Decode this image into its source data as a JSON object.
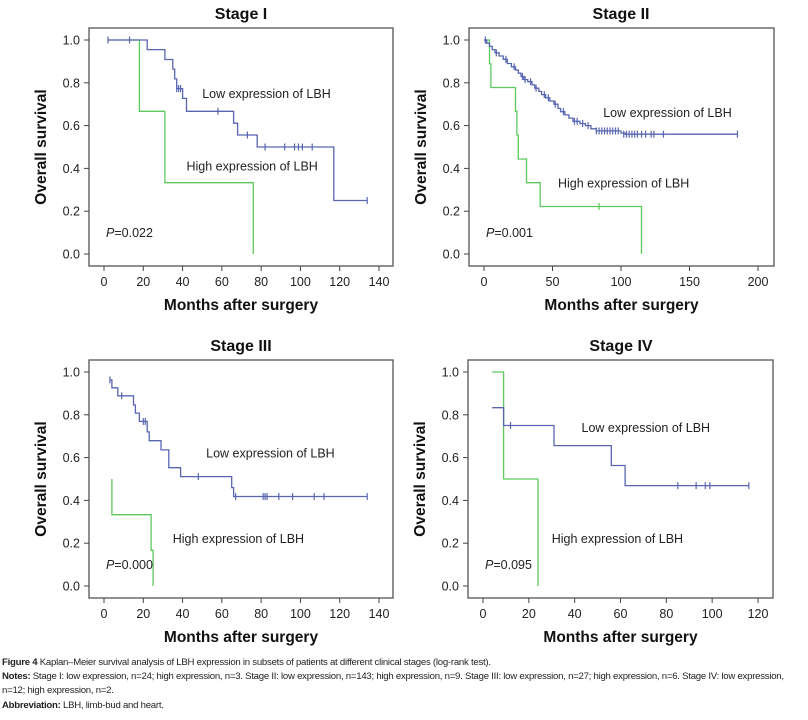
{
  "chart_data": [
    {
      "type": "line",
      "subtype": "kaplan-meier",
      "title": "Stage I",
      "xlabel": "Months after surgery",
      "ylabel": "Overall survival",
      "xlim": [
        0,
        140
      ],
      "ylim": [
        0,
        1
      ],
      "xticks": [
        0,
        20,
        40,
        60,
        80,
        100,
        120,
        140
      ],
      "yticks": [
        "0.0",
        "0.2",
        "0.4",
        "0.6",
        "0.8",
        "1.0"
      ],
      "pvalue_label": "P",
      "pvalue_text": "=0.022",
      "series": [
        {
          "name": "Low expression of LBH",
          "color": "#5866b2",
          "steps": [
            [
              2,
              1.0
            ],
            [
              22,
              0.955
            ],
            [
              31,
              0.909
            ],
            [
              35,
              0.864
            ],
            [
              36,
              0.818
            ],
            [
              37,
              0.773
            ],
            [
              40,
              0.727
            ],
            [
              42,
              0.667
            ],
            [
              66,
              0.611
            ],
            [
              68,
              0.556
            ],
            [
              78,
              0.5
            ],
            [
              117,
              0.25
            ],
            [
              134,
              0.25
            ]
          ],
          "censored": [
            [
              2,
              1.0
            ],
            [
              13,
              1.0
            ],
            [
              37,
              0.773
            ],
            [
              38,
              0.773
            ],
            [
              39,
              0.773
            ],
            [
              58,
              0.667
            ],
            [
              73,
              0.556
            ],
            [
              82,
              0.5
            ],
            [
              92,
              0.5
            ],
            [
              97,
              0.5
            ],
            [
              99,
              0.5
            ],
            [
              101,
              0.5
            ],
            [
              106,
              0.5
            ],
            [
              134,
              0.25
            ]
          ]
        },
        {
          "name": "High expression of LBH",
          "color": "#5dc95d",
          "steps": [
            [
              2,
              1.0
            ],
            [
              18,
              0.667
            ],
            [
              31,
              0.333
            ],
            [
              76,
              0.0
            ]
          ],
          "censored": []
        }
      ],
      "annotations": [
        {
          "text": "Low expression of LBH",
          "at": [
            50,
            0.73
          ]
        },
        {
          "text": "High expression of LBH",
          "at": [
            42,
            0.39
          ]
        }
      ]
    },
    {
      "type": "line",
      "subtype": "kaplan-meier",
      "title": "Stage II",
      "xlabel": "Months after surgery",
      "ylabel": "Overall survival",
      "xlim": [
        0,
        200
      ],
      "ylim": [
        0,
        1
      ],
      "xticks": [
        0,
        50,
        100,
        150,
        200
      ],
      "yticks": [
        "0.0",
        "0.2",
        "0.4",
        "0.6",
        "0.8",
        "1.0"
      ],
      "pvalue_label": "P",
      "pvalue_text": "=0.001",
      "series": [
        {
          "name": "Low expression of LBH",
          "color": "#5866b2",
          "steps": [
            [
              0,
              1.0
            ],
            [
              2,
              0.985
            ],
            [
              4,
              0.97
            ],
            [
              6,
              0.955
            ],
            [
              8,
              0.94
            ],
            [
              11,
              0.925
            ],
            [
              14,
              0.91
            ],
            [
              17,
              0.89
            ],
            [
              20,
              0.875
            ],
            [
              23,
              0.86
            ],
            [
              25,
              0.845
            ],
            [
              27,
              0.83
            ],
            [
              29,
              0.815
            ],
            [
              32,
              0.805
            ],
            [
              35,
              0.79
            ],
            [
              37,
              0.775
            ],
            [
              40,
              0.76
            ],
            [
              42,
              0.745
            ],
            [
              45,
              0.73
            ],
            [
              48,
              0.715
            ],
            [
              51,
              0.7
            ],
            [
              54,
              0.68
            ],
            [
              56,
              0.665
            ],
            [
              59,
              0.65
            ],
            [
              62,
              0.635
            ],
            [
              65,
              0.62
            ],
            [
              70,
              0.61
            ],
            [
              74,
              0.6
            ],
            [
              78,
              0.585
            ],
            [
              82,
              0.575
            ],
            [
              100,
              0.565
            ],
            [
              103,
              0.56
            ],
            [
              185,
              0.56
            ]
          ],
          "censored": [
            [
              1,
              1.0
            ],
            [
              9,
              0.94
            ],
            [
              16,
              0.91
            ],
            [
              22,
              0.875
            ],
            [
              28,
              0.83
            ],
            [
              30,
              0.815
            ],
            [
              34,
              0.805
            ],
            [
              38,
              0.775
            ],
            [
              44,
              0.745
            ],
            [
              47,
              0.73
            ],
            [
              52,
              0.7
            ],
            [
              58,
              0.665
            ],
            [
              66,
              0.62
            ],
            [
              68,
              0.62
            ],
            [
              72,
              0.61
            ],
            [
              76,
              0.6
            ],
            [
              82,
              0.575
            ],
            [
              84,
              0.575
            ],
            [
              86,
              0.575
            ],
            [
              88,
              0.575
            ],
            [
              90,
              0.575
            ],
            [
              92,
              0.575
            ],
            [
              94,
              0.575
            ],
            [
              96,
              0.575
            ],
            [
              98,
              0.575
            ],
            [
              102,
              0.56
            ],
            [
              104,
              0.56
            ],
            [
              106,
              0.56
            ],
            [
              108,
              0.56
            ],
            [
              110,
              0.56
            ],
            [
              112,
              0.56
            ],
            [
              115,
              0.56
            ],
            [
              118,
              0.56
            ],
            [
              122,
              0.56
            ],
            [
              124,
              0.56
            ],
            [
              131,
              0.56
            ],
            [
              185,
              0.56
            ]
          ]
        },
        {
          "name": "High expression of LBH",
          "color": "#5dc95d",
          "steps": [
            [
              0,
              1.0
            ],
            [
              4,
              0.889
            ],
            [
              5,
              0.778
            ],
            [
              23,
              0.667
            ],
            [
              24,
              0.556
            ],
            [
              25,
              0.444
            ],
            [
              31,
              0.333
            ],
            [
              41,
              0.222
            ],
            [
              115,
              0.0
            ]
          ],
          "censored": [
            [
              84,
              0.222
            ]
          ]
        }
      ],
      "annotations": [
        {
          "text": "Low expression of LBH",
          "at": [
            87,
            0.64
          ]
        },
        {
          "text": "High expression of LBH",
          "at": [
            54,
            0.31
          ]
        }
      ]
    },
    {
      "type": "line",
      "subtype": "kaplan-meier",
      "title": "Stage III",
      "xlabel": "Months after surgery",
      "ylabel": "Overall survival",
      "xlim": [
        0,
        140
      ],
      "ylim": [
        0,
        1
      ],
      "xticks": [
        0,
        20,
        40,
        60,
        80,
        100,
        120,
        140
      ],
      "yticks": [
        "0.0",
        "0.2",
        "0.4",
        "0.6",
        "0.8",
        "1.0"
      ],
      "pvalue_label": "P",
      "pvalue_text": "=0.000",
      "series": [
        {
          "name": "Low expression of LBH",
          "color": "#5866b2",
          "steps": [
            [
              3,
              0.963
            ],
            [
              4,
              0.926
            ],
            [
              7,
              0.889
            ],
            [
              15,
              0.846
            ],
            [
              16,
              0.808
            ],
            [
              18,
              0.769
            ],
            [
              22,
              0.72
            ],
            [
              23,
              0.679
            ],
            [
              29,
              0.636
            ],
            [
              33,
              0.553
            ],
            [
              39,
              0.511
            ],
            [
              65,
              0.46
            ],
            [
              66,
              0.418
            ],
            [
              134,
              0.418
            ]
          ],
          "censored": [
            [
              3,
              0.963
            ],
            [
              9,
              0.889
            ],
            [
              20,
              0.769
            ],
            [
              21,
              0.769
            ],
            [
              48,
              0.511
            ],
            [
              67,
              0.418
            ],
            [
              81,
              0.418
            ],
            [
              82,
              0.418
            ],
            [
              83,
              0.418
            ],
            [
              89,
              0.418
            ],
            [
              96,
              0.418
            ],
            [
              107,
              0.418
            ],
            [
              112,
              0.418
            ],
            [
              134,
              0.418
            ]
          ]
        },
        {
          "name": "High expression of LBH",
          "color": "#5dc95d",
          "steps": [
            [
              4,
              0.5
            ],
            [
              4,
              0.333
            ],
            [
              24,
              0.167
            ],
            [
              25,
              0.0
            ]
          ],
          "censored": []
        }
      ],
      "annotations": [
        {
          "text": "Low expression of LBH",
          "at": [
            52,
            0.6
          ]
        },
        {
          "text": "High expression of LBH",
          "at": [
            35,
            0.2
          ]
        }
      ]
    },
    {
      "type": "line",
      "subtype": "kaplan-meier",
      "title": "Stage IV",
      "xlabel": "Months after surgery",
      "ylabel": "Overall survival",
      "xlim": [
        0,
        120
      ],
      "ylim": [
        0,
        1
      ],
      "xticks": [
        0,
        20,
        40,
        60,
        80,
        100,
        120
      ],
      "yticks": [
        "0.0",
        "0.2",
        "0.4",
        "0.6",
        "0.8",
        "1.0"
      ],
      "pvalue_label": "P",
      "pvalue_text": "=0.095",
      "series": [
        {
          "name": "Low expression of LBH",
          "color": "#5866b2",
          "steps": [
            [
              4,
              0.833
            ],
            [
              9,
              0.75
            ],
            [
              31,
              0.656
            ],
            [
              56,
              0.563
            ],
            [
              62,
              0.469
            ],
            [
              116,
              0.469
            ]
          ],
          "censored": [
            [
              12,
              0.75
            ],
            [
              85,
              0.469
            ],
            [
              93,
              0.469
            ],
            [
              97,
              0.469
            ],
            [
              99,
              0.469
            ],
            [
              116,
              0.469
            ]
          ]
        },
        {
          "name": "High expression of LBH",
          "color": "#5dc95d",
          "steps": [
            [
              4,
              1.0
            ],
            [
              9,
              0.5
            ],
            [
              24,
              0.0
            ]
          ],
          "censored": []
        }
      ],
      "annotations": [
        {
          "text": "Low expression of LBH",
          "at": [
            43,
            0.72
          ]
        },
        {
          "text": "High expression of LBH",
          "at": [
            30,
            0.2
          ]
        }
      ]
    }
  ],
  "caption": {
    "figure_label": "Figure 4",
    "figure_text": " Kaplan–Meier survival analysis of LBH expression in subsets of patients at different clinical stages (log-rank test).",
    "notes_label": "Notes:",
    "notes_text": " Stage I: low expression, n=24; high expression, n=3. Stage II: low expression, n=143; high expression, n=9. Stage III: low expression, n=27; high expression, n=6. Stage IV: low expression, n=12; high expression, n=2.",
    "abbreviation_label": "Abbreviation:",
    "abbreviation_text": " LBH, limb-bud and heart."
  }
}
